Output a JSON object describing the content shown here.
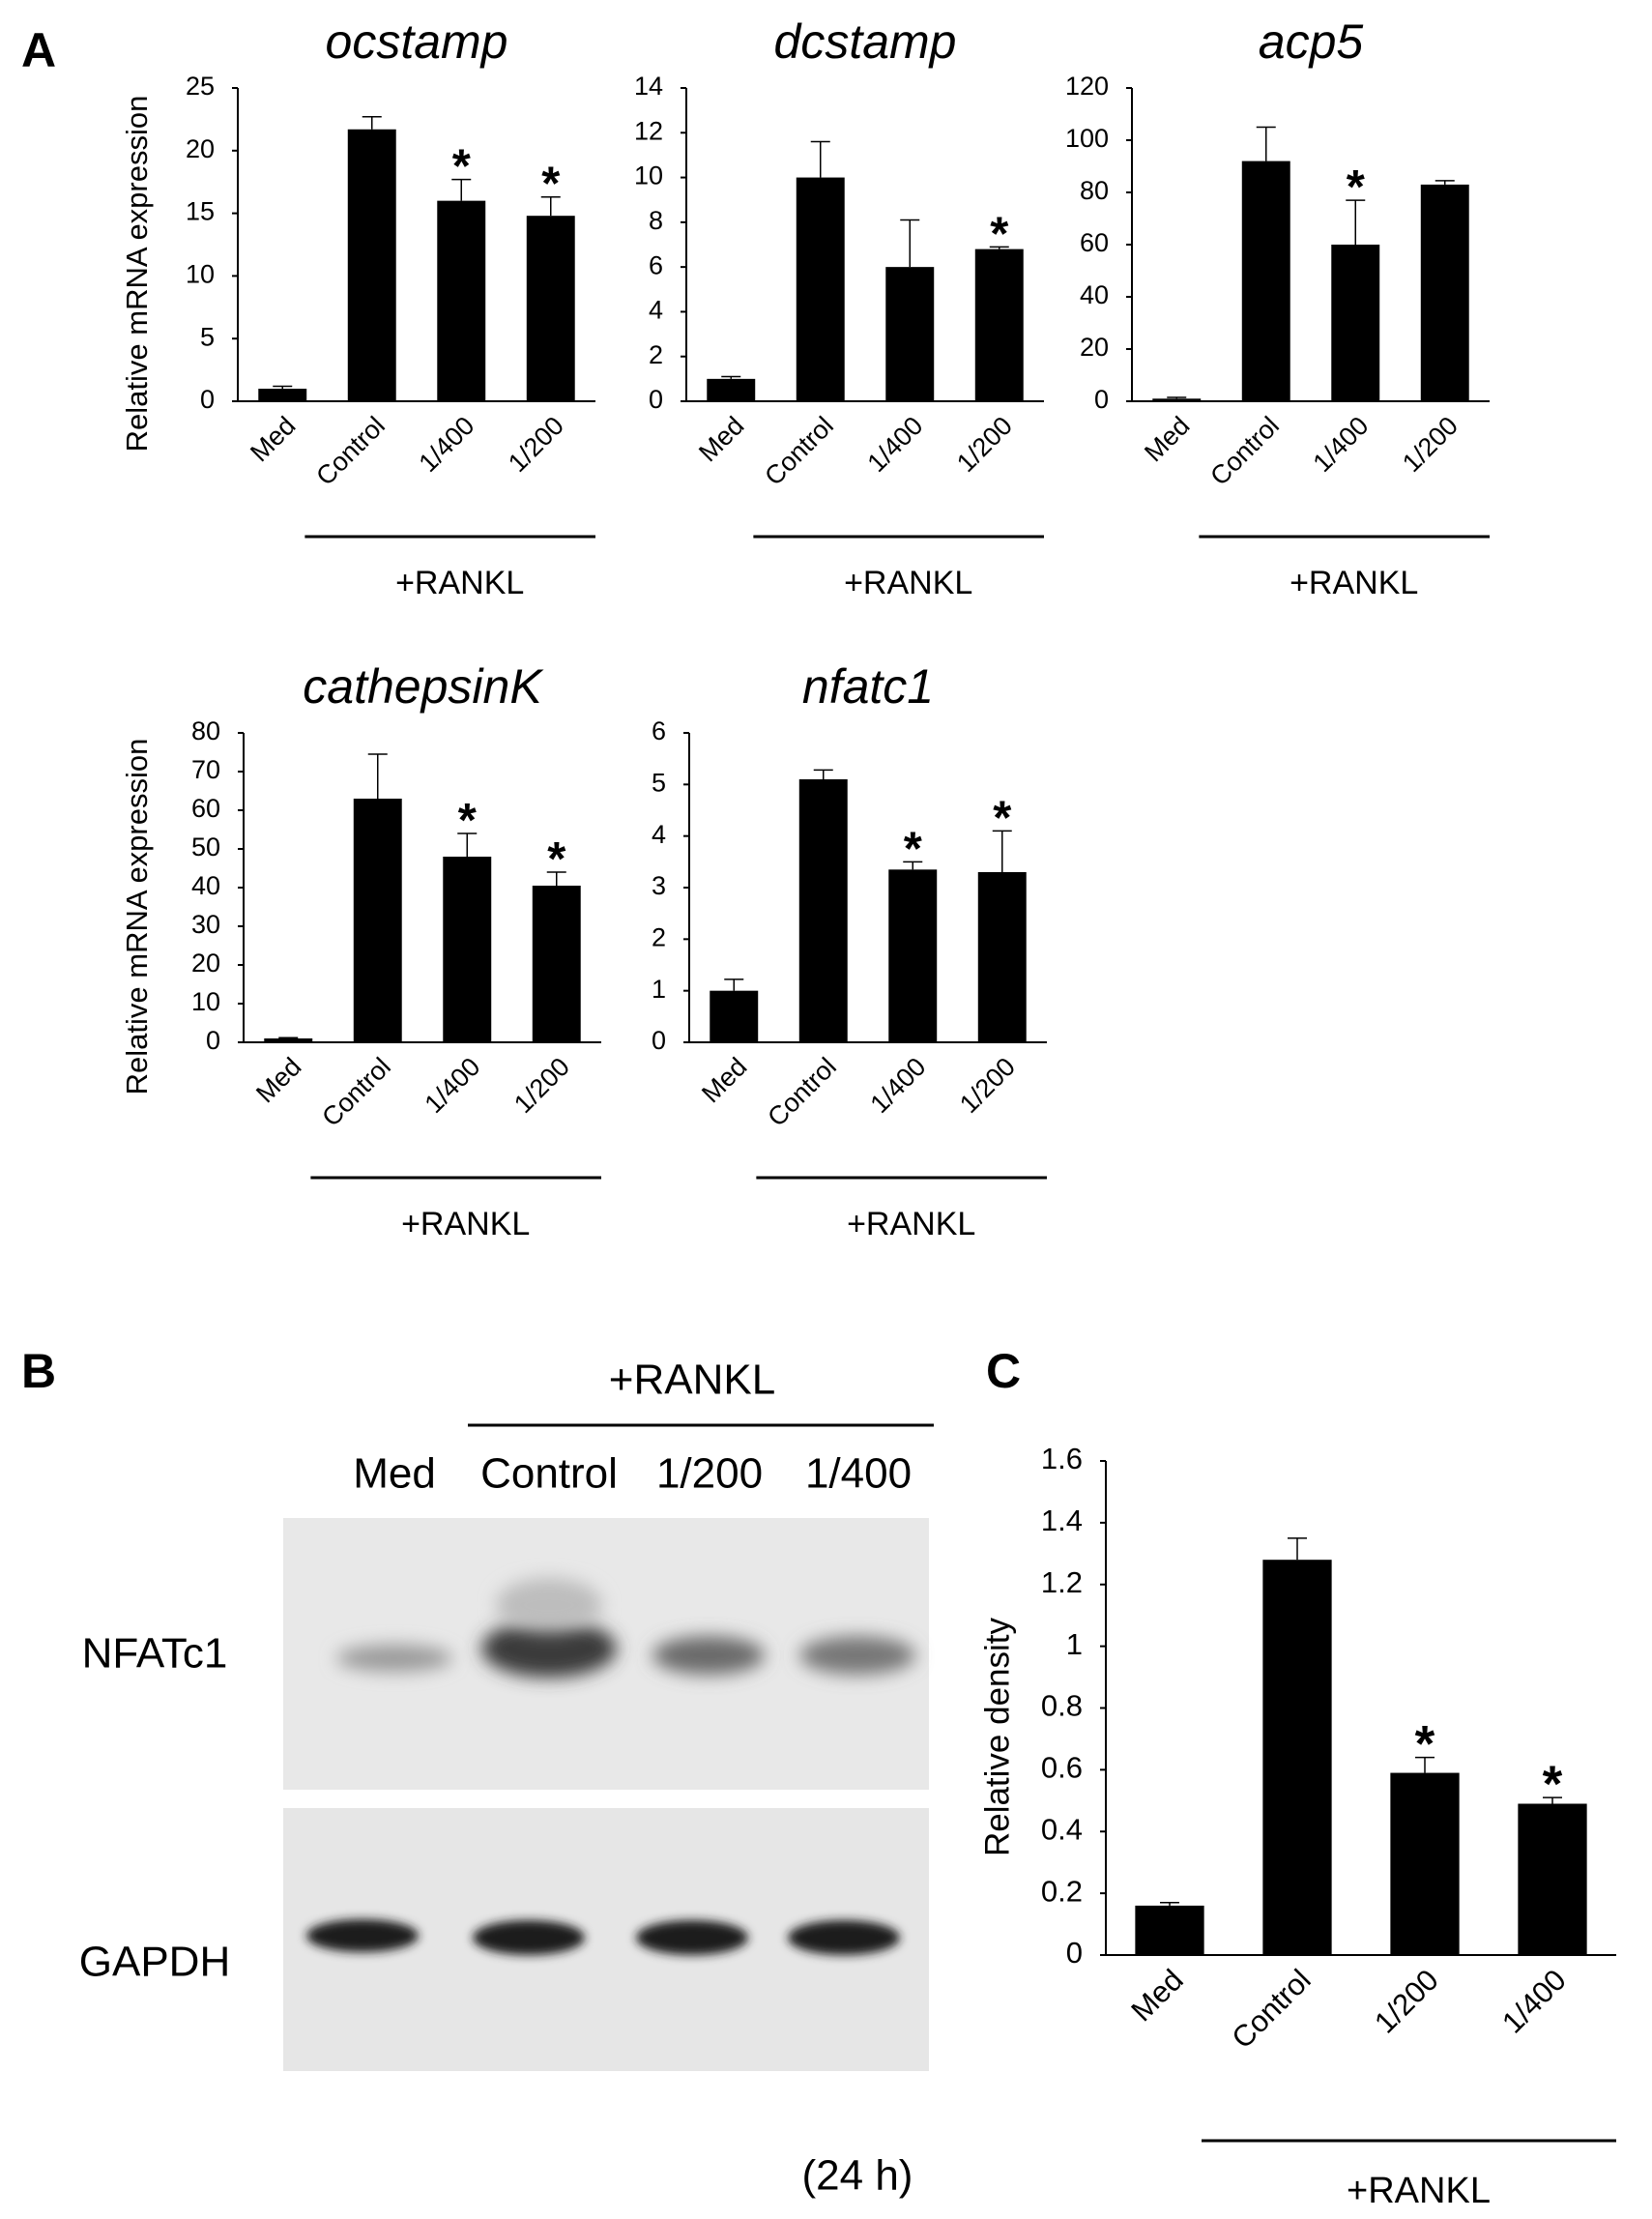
{
  "panel_labels": [
    "A",
    "B",
    "C"
  ],
  "blot": {
    "group_label": "+RANKL",
    "lanes": [
      "Med",
      "Control",
      "1/200",
      "1/400"
    ],
    "rows": [
      "NFATc1",
      "GAPDH"
    ],
    "time": "(24 h)"
  },
  "chart_data": [
    {
      "type": "bar",
      "title": "ocstamp",
      "ylabel": "Relative mRNA expression",
      "categories": [
        "Med",
        "Control",
        "1/400",
        "1/200"
      ],
      "values": [
        1,
        21.7,
        16,
        14.8
      ],
      "errors": [
        0.2,
        1,
        1.7,
        1.5
      ],
      "color": "#000000",
      "ylim": [
        0,
        25
      ],
      "yticks": [
        0,
        5,
        10,
        15,
        20,
        25
      ],
      "group_label": "+RANKL",
      "annotations": [
        {
          "text": "*",
          "x": "1/400"
        },
        {
          "text": "*",
          "x": "1/200"
        }
      ]
    },
    {
      "type": "bar",
      "title": "dcstamp",
      "categories": [
        "Med",
        "Control",
        "1/400",
        "1/200"
      ],
      "values": [
        1,
        10,
        6,
        6.8
      ],
      "errors": [
        0.1,
        1.6,
        2.1,
        0.1
      ],
      "color": "#000000",
      "ylim": [
        0,
        14
      ],
      "yticks": [
        0,
        2,
        4,
        6,
        8,
        10,
        12,
        14
      ],
      "group_label": "+RANKL",
      "annotations": [
        {
          "text": "*",
          "x": "1/200"
        }
      ]
    },
    {
      "type": "bar",
      "title": "acp5",
      "categories": [
        "Med",
        "Control",
        "1/400",
        "1/200"
      ],
      "values": [
        1,
        92,
        60,
        83
      ],
      "errors": [
        0.5,
        13,
        17,
        1.5
      ],
      "color": "#000000",
      "ylim": [
        0,
        120
      ],
      "yticks": [
        0,
        20,
        40,
        60,
        80,
        100,
        120
      ],
      "group_label": "+RANKL",
      "annotations": [
        {
          "text": "*",
          "x": "1/400"
        }
      ]
    },
    {
      "type": "bar",
      "title": "cathepsinK",
      "ylabel": "Relative mRNA expression",
      "categories": [
        "Med",
        "Control",
        "1/400",
        "1/200"
      ],
      "values": [
        1,
        63,
        48,
        40.5
      ],
      "errors": [
        0.2,
        11.5,
        6,
        3.5
      ],
      "color": "#000000",
      "ylim": [
        0,
        80
      ],
      "yticks": [
        0,
        10,
        20,
        30,
        40,
        50,
        60,
        70,
        80
      ],
      "group_label": "+RANKL",
      "annotations": [
        {
          "text": "*",
          "x": "1/400"
        },
        {
          "text": "*",
          "x": "1/200"
        }
      ]
    },
    {
      "type": "bar",
      "title": "nfatc1",
      "categories": [
        "Med",
        "Control",
        "1/400",
        "1/200"
      ],
      "values": [
        1,
        5.1,
        3.35,
        3.3
      ],
      "errors": [
        0.22,
        0.18,
        0.15,
        0.8
      ],
      "color": "#000000",
      "ylim": [
        0,
        6
      ],
      "yticks": [
        0,
        1,
        2,
        3,
        4,
        5,
        6
      ],
      "group_label": "+RANKL",
      "annotations": [
        {
          "text": "*",
          "x": "1/400"
        },
        {
          "text": "*",
          "x": "1/200"
        }
      ]
    },
    {
      "type": "bar",
      "ylabel": "Relative density",
      "categories": [
        "Med",
        "Control",
        "1/200",
        "1/400"
      ],
      "values": [
        0.16,
        1.28,
        0.59,
        0.49
      ],
      "errors": [
        0.01,
        0.07,
        0.05,
        0.02
      ],
      "color": "#000000",
      "ylim": [
        0,
        1.6
      ],
      "yticks": [
        0,
        0.2,
        0.4,
        0.6,
        0.8,
        1,
        1.2,
        1.4,
        1.6
      ],
      "group_label": "+RANKL",
      "annotations": [
        {
          "text": "*",
          "x": "1/200"
        },
        {
          "text": "*",
          "x": "1/400"
        }
      ]
    }
  ]
}
